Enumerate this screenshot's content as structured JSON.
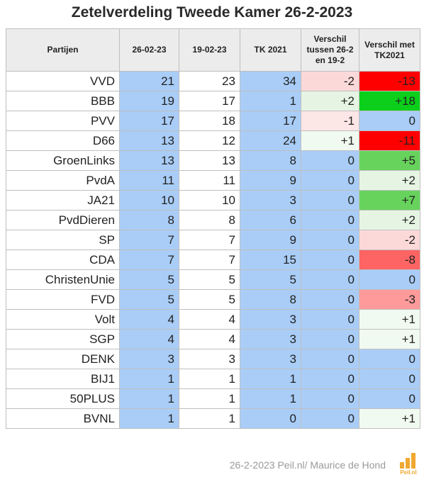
{
  "chart_data": {
    "type": "table",
    "title": "Zetelverdeling Tweede Kamer 26-2-2023",
    "columns": [
      "Partijen",
      "26-02-23",
      "19-02-23",
      "TK 2021",
      "Verschil tussen 26-2 en 19-2",
      "Verschil met TK2021"
    ],
    "rows": [
      {
        "party": "VVD",
        "d26": "21",
        "d19": "23",
        "tk": "34",
        "v1": "-2",
        "v2": "-13"
      },
      {
        "party": "BBB",
        "d26": "19",
        "d19": "17",
        "tk": "1",
        "v1": "+2",
        "v2": "+18"
      },
      {
        "party": "PVV",
        "d26": "17",
        "d19": "18",
        "tk": "17",
        "v1": "-1",
        "v2": "0"
      },
      {
        "party": "D66",
        "d26": "13",
        "d19": "12",
        "tk": "24",
        "v1": "+1",
        "v2": "-11"
      },
      {
        "party": "GroenLinks",
        "d26": "13",
        "d19": "13",
        "tk": "8",
        "v1": "0",
        "v2": "+5"
      },
      {
        "party": "PvdA",
        "d26": "11",
        "d19": "11",
        "tk": "9",
        "v1": "0",
        "v2": "+2"
      },
      {
        "party": "JA21",
        "d26": "10",
        "d19": "10",
        "tk": "3",
        "v1": "0",
        "v2": "+7"
      },
      {
        "party": "PvdDieren",
        "d26": "8",
        "d19": "8",
        "tk": "6",
        "v1": "0",
        "v2": "+2"
      },
      {
        "party": "SP",
        "d26": "7",
        "d19": "7",
        "tk": "9",
        "v1": "0",
        "v2": "-2"
      },
      {
        "party": "CDA",
        "d26": "7",
        "d19": "7",
        "tk": "15",
        "v1": "0",
        "v2": "-8"
      },
      {
        "party": "ChristenUnie",
        "d26": "5",
        "d19": "5",
        "tk": "5",
        "v1": "0",
        "v2": "0"
      },
      {
        "party": "FVD",
        "d26": "5",
        "d19": "5",
        "tk": "8",
        "v1": "0",
        "v2": "-3"
      },
      {
        "party": "Volt",
        "d26": "4",
        "d19": "4",
        "tk": "3",
        "v1": "0",
        "v2": "+1"
      },
      {
        "party": "SGP",
        "d26": "4",
        "d19": "4",
        "tk": "3",
        "v1": "0",
        "v2": "+1"
      },
      {
        "party": "DENK",
        "d26": "3",
        "d19": "3",
        "tk": "3",
        "v1": "0",
        "v2": "0"
      },
      {
        "party": "BIJ1",
        "d26": "1",
        "d19": "1",
        "tk": "1",
        "v1": "0",
        "v2": "0"
      },
      {
        "party": "50PLUS",
        "d26": "1",
        "d19": "1",
        "tk": "1",
        "v1": "0",
        "v2": "0"
      },
      {
        "party": "BVNL",
        "d26": "1",
        "d19": "1",
        "tk": "0",
        "v1": "0",
        "v2": "+1"
      }
    ],
    "colors": {
      "seat_column": "#a9cdf7",
      "zero": "#a9cdf7",
      "positive": [
        "#f1faf0",
        "#e6f5e3",
        "#96da8f",
        "#67d35c",
        "#0bcf1b"
      ],
      "negative": [
        "#fde6e6",
        "#fbd9d9",
        "#fe9a9a",
        "#fe6464",
        "#ff0000"
      ]
    }
  },
  "footer": {
    "source": "26-2-2023 Peil.nl/ Maurice de Hond",
    "logo_text": "Peil.nl"
  }
}
